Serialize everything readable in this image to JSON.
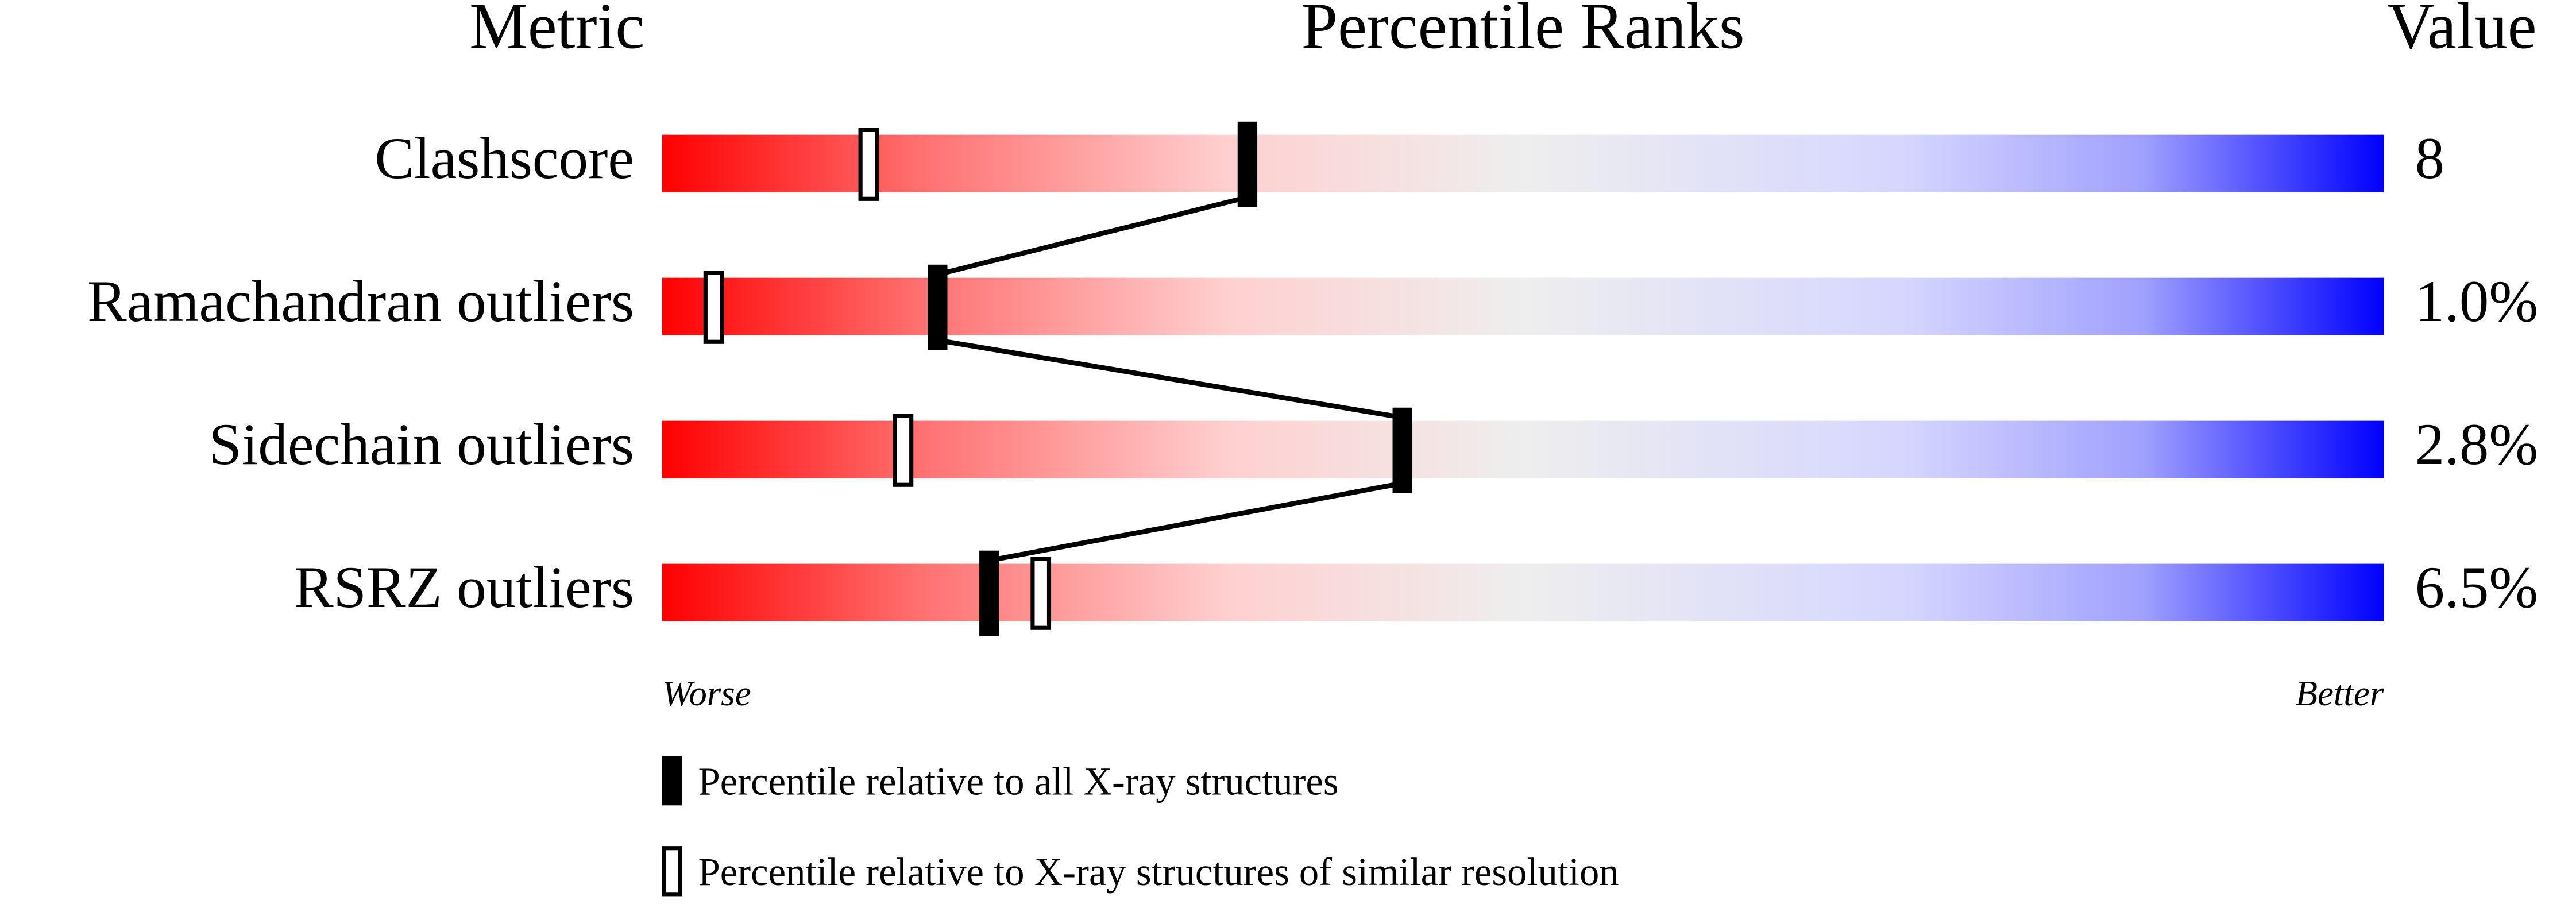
{
  "chart_data": {
    "type": "percentile",
    "headers": {
      "metric": "Metric",
      "ranks": "Percentile Ranks",
      "value": "Value"
    },
    "categories": [
      "Clashscore",
      "Ramachandran outliers",
      "Sidechain outliers",
      "RSRZ outliers"
    ],
    "metric_values": [
      "8",
      "1.0%",
      "2.8%",
      "6.5%"
    ],
    "series": [
      {
        "name": "Percentile relative to all X-ray structures",
        "color": "#000000",
        "filled": true,
        "values": [
          34,
          16,
          43,
          19
        ]
      },
      {
        "name": "Percentile relative to X-ray structures of similar resolution",
        "color": "#000000",
        "filled": false,
        "values": [
          12,
          3,
          14,
          22
        ]
      }
    ],
    "xlim": [
      0,
      100
    ],
    "axis_labels": {
      "low": "Worse",
      "high": "Better"
    }
  }
}
